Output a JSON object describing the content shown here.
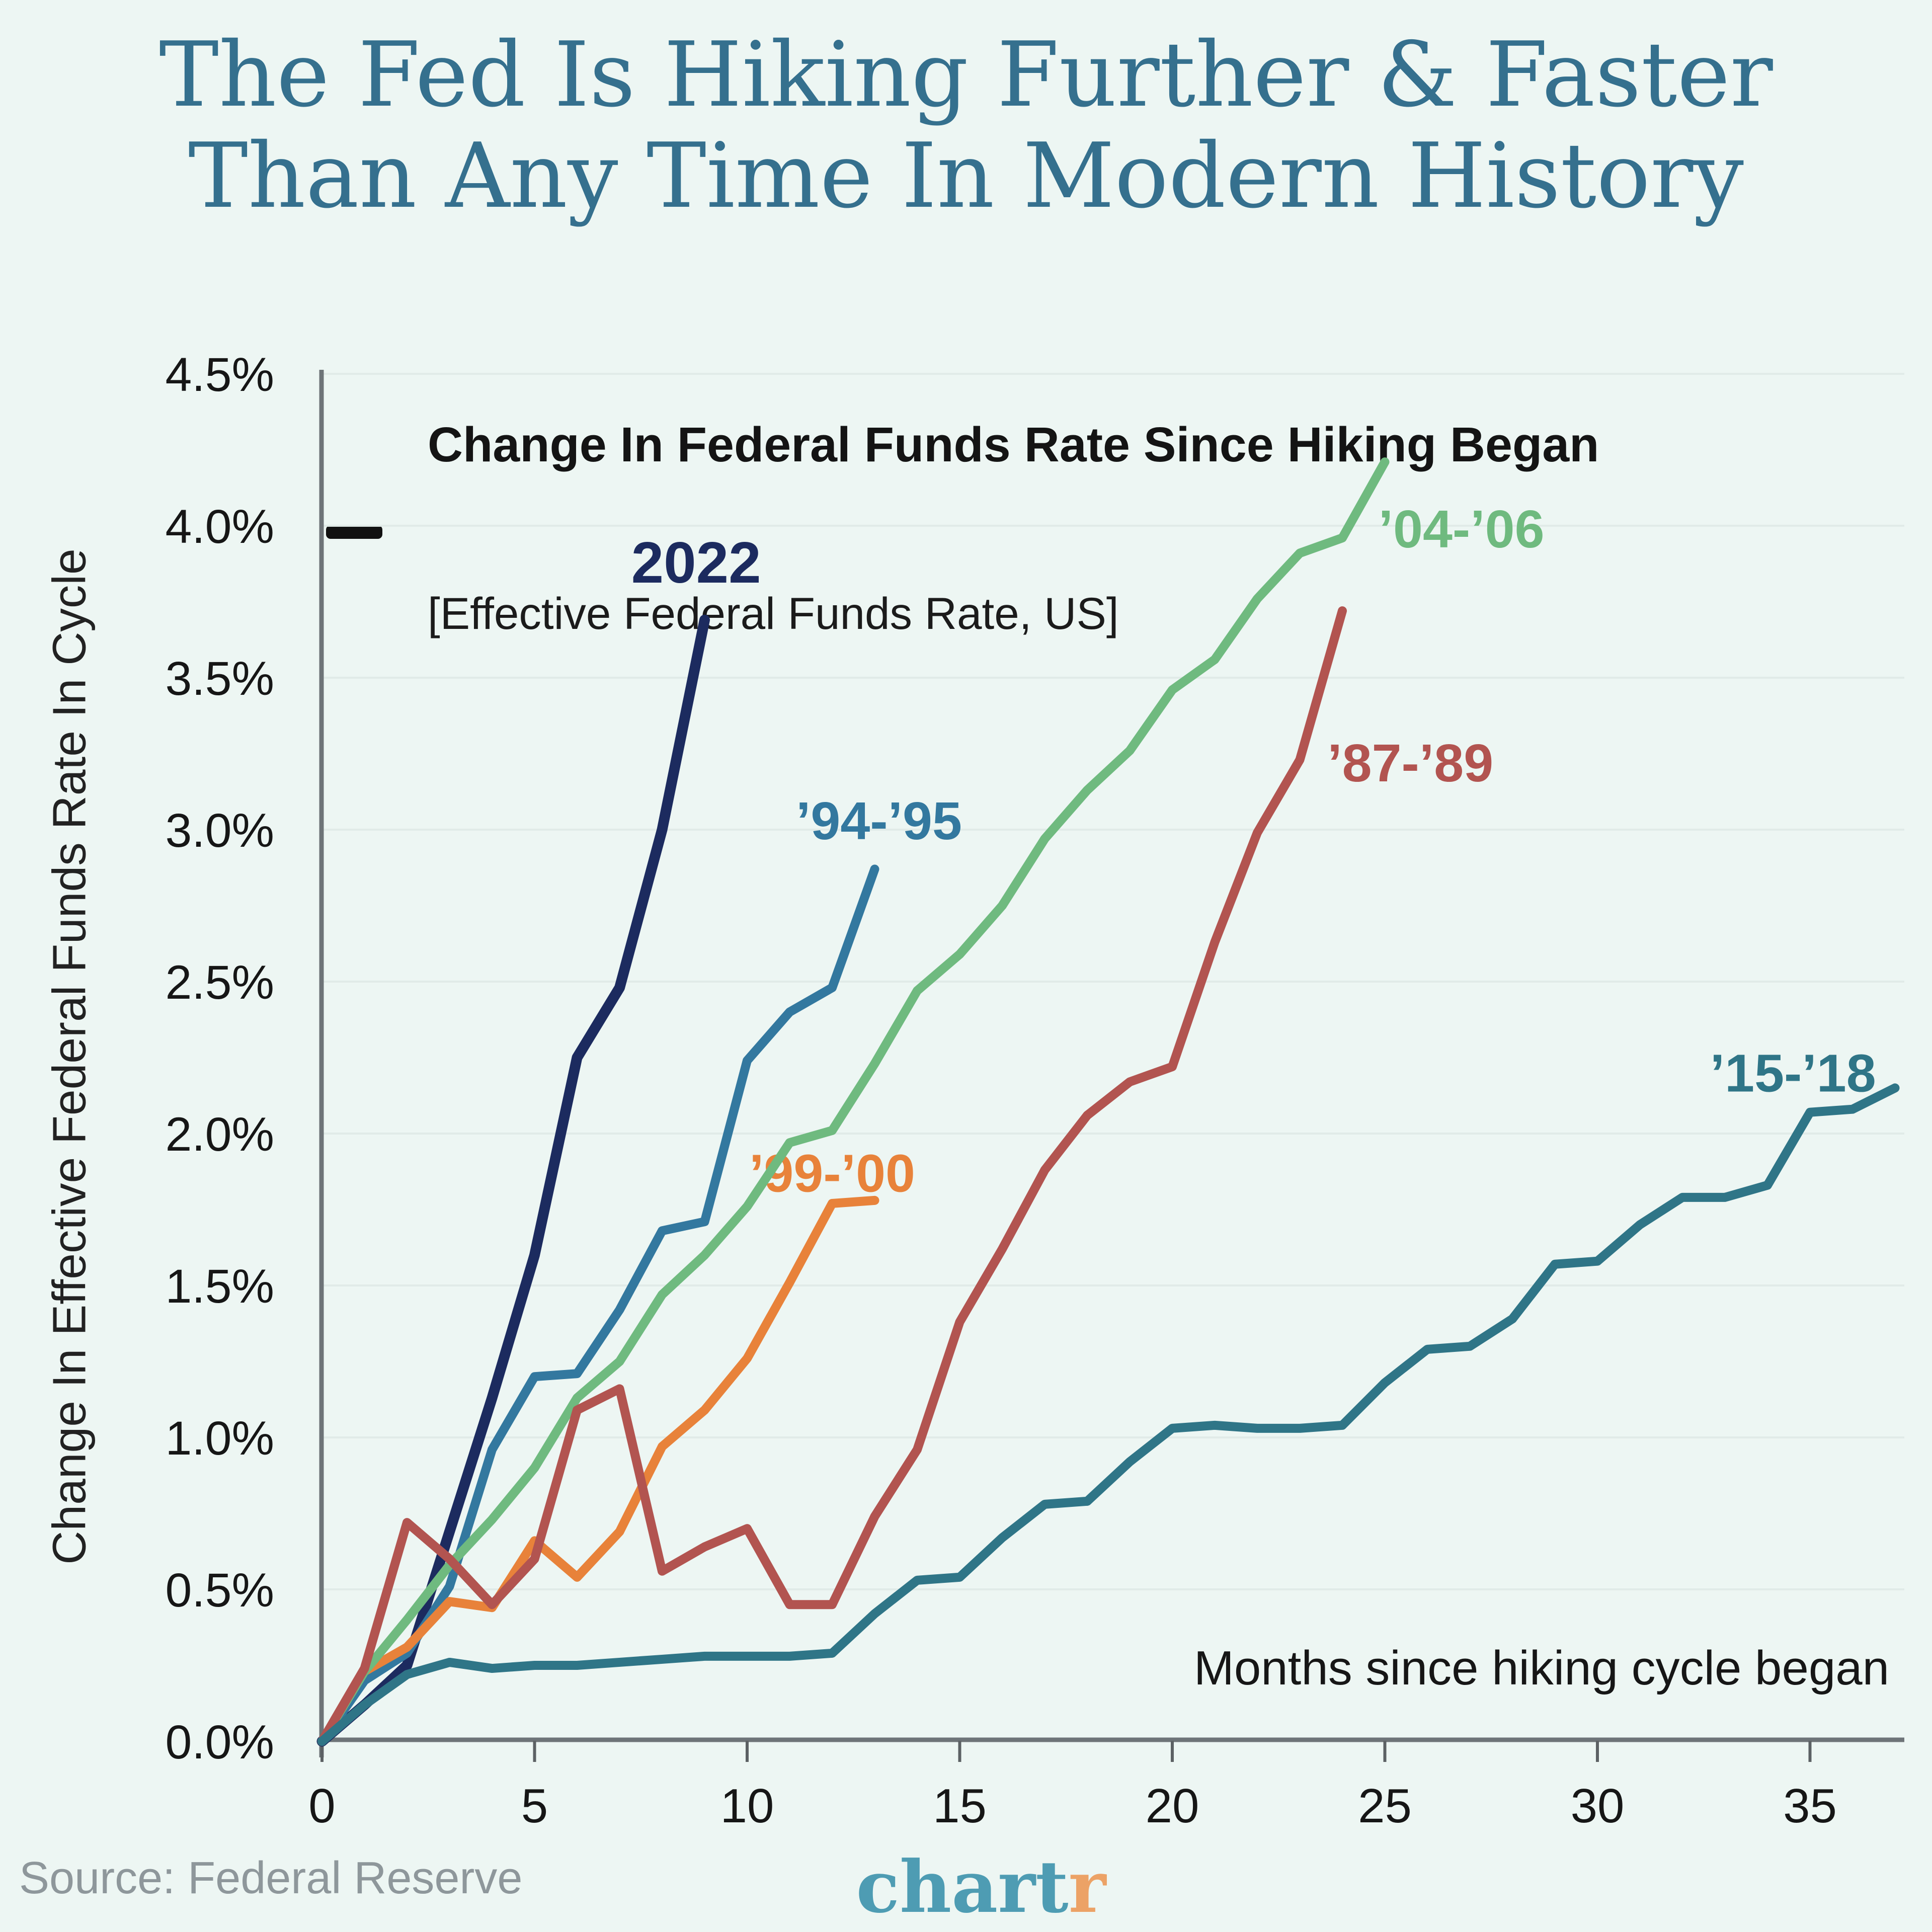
{
  "title": {
    "line1": "The Fed Is Hiking Further & Faster",
    "line2": "Than Any Time In Modern History"
  },
  "legend": {
    "title": "Change In Federal Funds Rate Since Hiking Began",
    "subtitle": "[Effective Federal Funds Rate, US]"
  },
  "axes": {
    "y_label": "Change In Effective Federal Funds Rate In Cycle",
    "x_note": "Months since hiking cycle began",
    "x_ticks": [
      "0",
      "5",
      "10",
      "15",
      "20",
      "25",
      "30",
      "35"
    ],
    "y_ticks": [
      "0.0%",
      "0.5%",
      "1.0%",
      "1.5%",
      "2.0%",
      "2.5%",
      "3.0%",
      "3.5%",
      "4.0%",
      "4.5%"
    ]
  },
  "footer": {
    "source": "Source: Federal Reserve",
    "logo_main": "chart",
    "logo_accent": "r"
  },
  "colors": {
    "background": "#edf6f3",
    "title": "#35708e",
    "grid": "#e1ebe8",
    "spine": "#6e7478",
    "legend_dash": "#111111",
    "source_text": "#8e979b",
    "logo_main": "#4e9cb3",
    "logo_accent": "#eca266"
  },
  "chart_data": {
    "type": "line",
    "title": "Change In Federal Funds Rate Since Hiking Began",
    "subtitle": "[Effective Federal Funds Rate, US]",
    "xlabel": "Months since hiking cycle began",
    "ylabel": "Change In Effective Federal Funds Rate In Cycle",
    "x_unit": "month index since hiking cycle began (each value = one month)",
    "y_unit": "percentage-point change in effective federal funds rate",
    "xlim": [
      0,
      37.5
    ],
    "ylim": [
      0,
      4.5
    ],
    "grid": "horizontal, every 0.5%",
    "legend_position": "top-left inside plot",
    "y_gridlines": [
      0.5,
      1.0,
      1.5,
      2.0,
      2.5,
      3.0,
      3.5,
      4.0,
      4.5
    ],
    "series": [
      {
        "name": "2022",
        "color": "#1c2b5f",
        "stroke_width": 21,
        "label_size": 116,
        "label_weight": 700,
        "label_at": [
          8.8,
          3.88
        ],
        "values": [
          0,
          0.12,
          0.25,
          0.69,
          1.13,
          1.6,
          2.25,
          2.48,
          3.0,
          3.69
        ]
      },
      {
        "name": "’94-’95",
        "color": "#33789f",
        "stroke_width": 18,
        "label_size": 106,
        "label_weight": 600,
        "label_at": [
          13.1,
          3.03
        ],
        "values": [
          0,
          0.2,
          0.29,
          0.51,
          0.96,
          1.2,
          1.21,
          1.42,
          1.68,
          1.71,
          2.24,
          2.4,
          2.48,
          2.87
        ]
      },
      {
        "name": "’99-’00",
        "color": "#e8823a",
        "stroke_width": 18,
        "label_size": 106,
        "label_weight": 600,
        "label_at": [
          12.0,
          1.87
        ],
        "values": [
          0,
          0.23,
          0.31,
          0.46,
          0.44,
          0.66,
          0.54,
          0.69,
          0.97,
          1.09,
          1.26,
          1.51,
          1.77,
          1.78
        ]
      },
      {
        "name": "’04-’06",
        "color": "#6fba7f",
        "stroke_width": 18,
        "label_size": 106,
        "label_weight": 600,
        "label_at": [
          26.8,
          3.99
        ],
        "values": [
          0,
          0.23,
          0.4,
          0.58,
          0.73,
          0.9,
          1.13,
          1.25,
          1.47,
          1.6,
          1.76,
          1.97,
          2.01,
          2.23,
          2.47,
          2.59,
          2.75,
          2.97,
          3.13,
          3.26,
          3.46,
          3.56,
          3.76,
          3.91,
          3.96,
          4.21
        ]
      },
      {
        "name": "’87-’89",
        "color": "#b25450",
        "stroke_width": 18,
        "label_size": 106,
        "label_weight": 600,
        "label_at": [
          25.6,
          3.22
        ],
        "values": [
          0,
          0.24,
          0.72,
          0.6,
          0.45,
          0.6,
          1.09,
          1.16,
          0.56,
          0.64,
          0.7,
          0.45,
          0.45,
          0.74,
          0.96,
          1.38,
          1.62,
          1.88,
          2.06,
          2.17,
          2.22,
          2.63,
          2.99,
          3.23,
          3.72
        ]
      },
      {
        "name": "’15-’18",
        "color": "#2f7587",
        "stroke_width": 18,
        "label_size": 106,
        "label_weight": 600,
        "label_at": [
          34.6,
          2.2
        ],
        "values": [
          0,
          0.12,
          0.22,
          0.26,
          0.24,
          0.25,
          0.25,
          0.26,
          0.27,
          0.28,
          0.28,
          0.28,
          0.29,
          0.42,
          0.53,
          0.54,
          0.67,
          0.78,
          0.79,
          0.92,
          1.03,
          1.04,
          1.03,
          1.03,
          1.04,
          1.18,
          1.29,
          1.3,
          1.39,
          1.57,
          1.58,
          1.7,
          1.79,
          1.79,
          1.83,
          2.07,
          2.08,
          2.15
        ]
      }
    ]
  }
}
